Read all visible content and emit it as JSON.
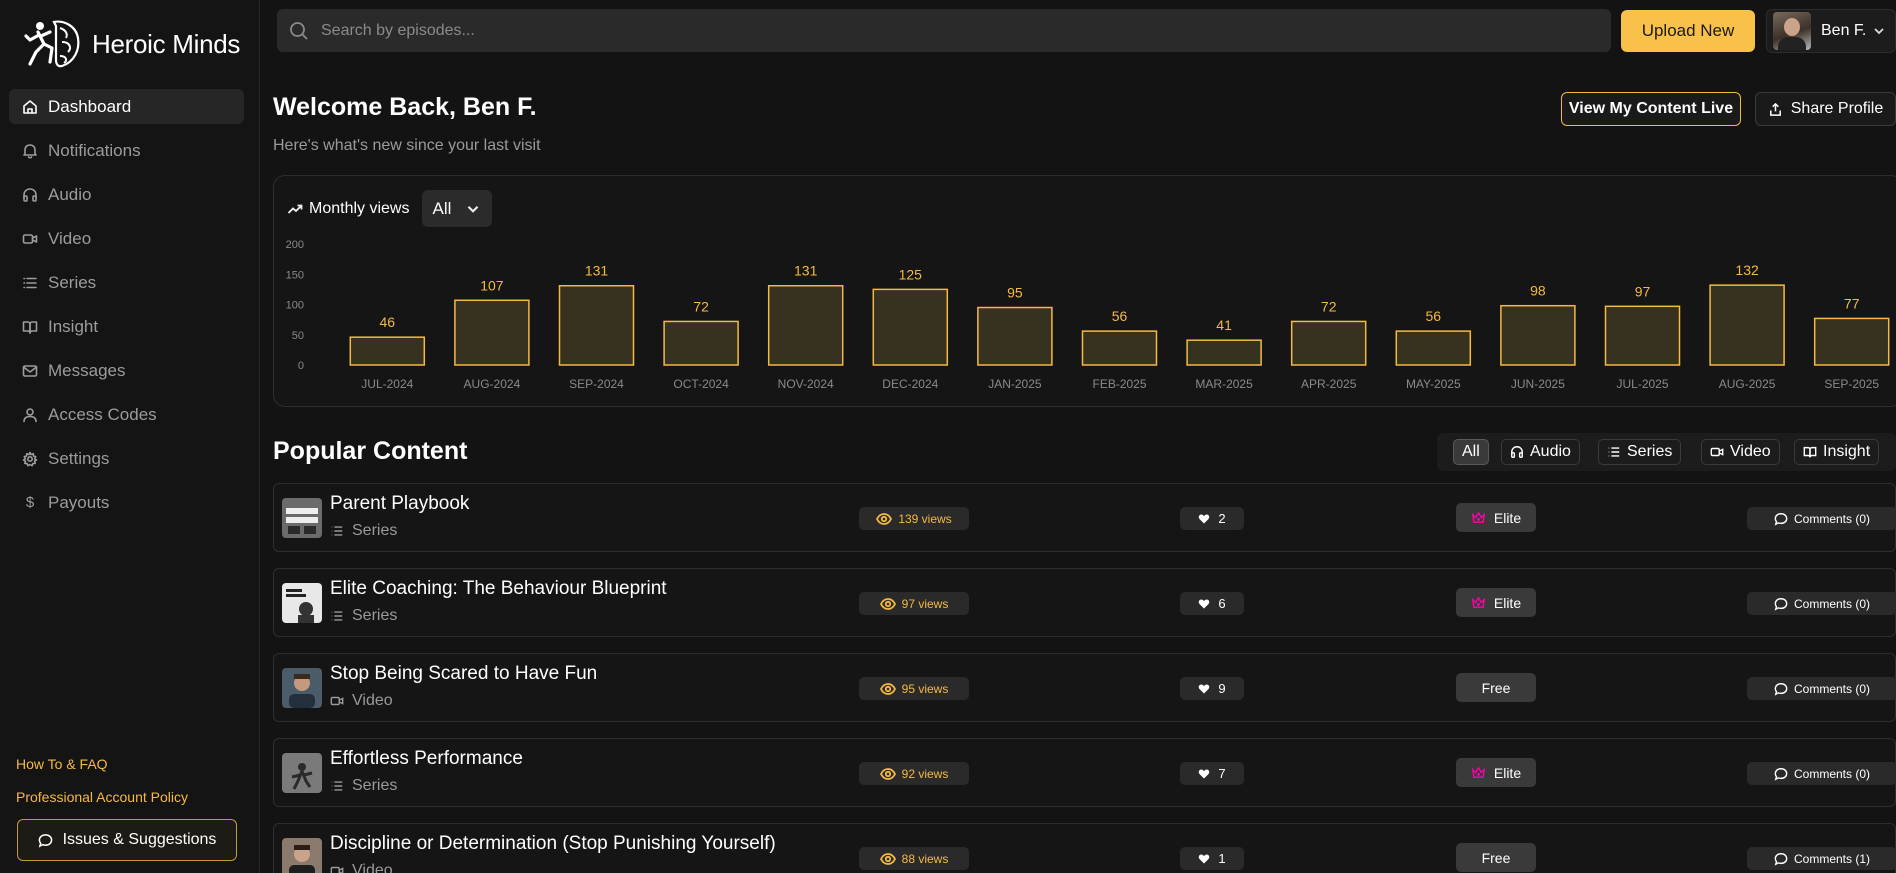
{
  "brand": {
    "name": "Heroic Minds"
  },
  "sidebar": {
    "items": [
      {
        "label": "Dashboard",
        "icon": "home-icon",
        "active": true
      },
      {
        "label": "Notifications",
        "icon": "bell-icon"
      },
      {
        "label": "Audio",
        "icon": "headphones-icon"
      },
      {
        "label": "Video",
        "icon": "video-icon"
      },
      {
        "label": "Series",
        "icon": "list-icon"
      },
      {
        "label": "Insight",
        "icon": "book-icon"
      },
      {
        "label": "Messages",
        "icon": "mail-icon"
      },
      {
        "label": "Access Codes",
        "icon": "user-icon"
      },
      {
        "label": "Settings",
        "icon": "gear-icon"
      },
      {
        "label": "Payouts",
        "icon": "dollar-icon"
      }
    ],
    "footer": {
      "faq": "How To & FAQ",
      "policy": "Professional Account Policy",
      "issues": "Issues & Suggestions"
    }
  },
  "search": {
    "placeholder": "Search by episodes..."
  },
  "header": {
    "upload_label": "Upload New",
    "user_name": "Ben F."
  },
  "welcome": {
    "title": "Welcome Back, Ben F.",
    "subtitle": "Here's what's new since your last visit",
    "view_live": "View My Content Live",
    "share": "Share Profile"
  },
  "chart_card": {
    "title": "Monthly views",
    "range": "All"
  },
  "chart_data": {
    "type": "bar",
    "categories": [
      "JUL-2024",
      "AUG-2024",
      "SEP-2024",
      "OCT-2024",
      "NOV-2024",
      "DEC-2024",
      "JAN-2025",
      "FEB-2025",
      "MAR-2025",
      "APR-2025",
      "MAY-2025",
      "JUN-2025",
      "JUL-2025",
      "AUG-2025",
      "SEP-2025"
    ],
    "values": [
      46,
      107,
      131,
      72,
      131,
      125,
      95,
      56,
      41,
      72,
      56,
      98,
      97,
      132,
      77
    ],
    "yticks": [
      0,
      50,
      100,
      150,
      200
    ],
    "ylim": [
      0,
      200
    ],
    "title": "Monthly views",
    "xlabel": "",
    "ylabel": "",
    "grid": false,
    "colors": {
      "bar_fill": "#36321f",
      "bar_stroke": "#f5b942",
      "label": "#f5b942",
      "tick": "#8a8a8a"
    }
  },
  "popular": {
    "title": "Popular Content",
    "filters": [
      "All",
      "Audio",
      "Series",
      "Video",
      "Insight"
    ],
    "rows": [
      {
        "title": "Parent Playbook",
        "type": "Series",
        "views": "139 views",
        "likes": "2",
        "tier": "Elite",
        "comments": "Comments (0)"
      },
      {
        "title": "Elite Coaching: The Behaviour Blueprint",
        "type": "Series",
        "views": "97 views",
        "likes": "6",
        "tier": "Elite",
        "comments": "Comments (0)"
      },
      {
        "title": "Stop Being Scared to Have Fun",
        "type": "Video",
        "views": "95 views",
        "likes": "9",
        "tier": "Free",
        "comments": "Comments (0)"
      },
      {
        "title": "Effortless Performance",
        "type": "Series",
        "views": "92 views",
        "likes": "7",
        "tier": "Elite",
        "comments": "Comments (0)"
      },
      {
        "title": "Discipline or Determination (Stop Punishing Yourself)",
        "type": "Video",
        "views": "88 views",
        "likes": "1",
        "tier": "Free",
        "comments": "Comments (1)"
      }
    ]
  }
}
